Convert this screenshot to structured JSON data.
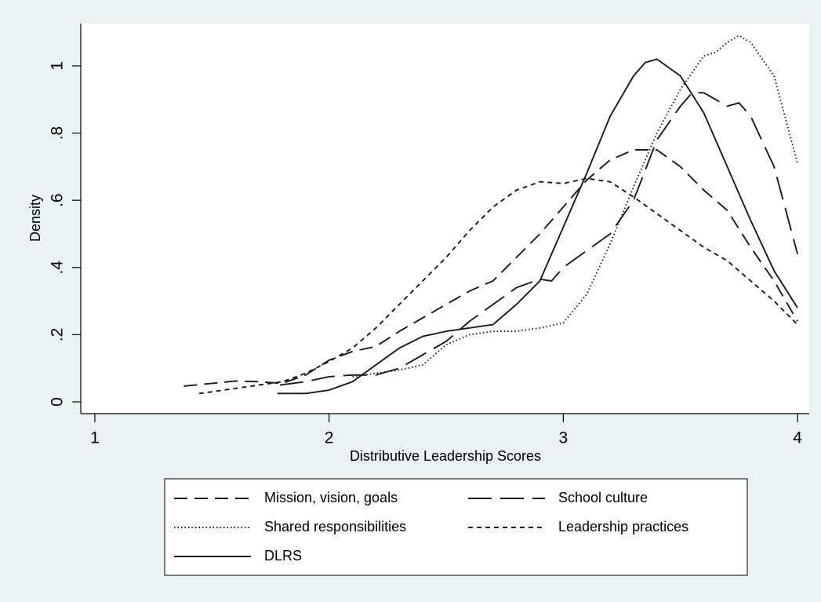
{
  "chart_data": {
    "type": "line",
    "xlabel": "Distributive Leadership Scores",
    "ylabel": "Density",
    "xlim": [
      0.94,
      4.05
    ],
    "xticks": [
      1,
      2,
      3,
      4
    ],
    "ylim": [
      -0.035,
      1.126
    ],
    "yticks": [
      0,
      {
        "value": 0.2,
        "label": ".2"
      },
      {
        "value": 0.4,
        "label": ".4"
      },
      {
        "value": 0.6,
        "label": ".6"
      },
      {
        "value": 0.8,
        "label": ".8"
      },
      1
    ],
    "grid": false,
    "series": [
      {
        "name": "Mission, vision, goals",
        "color": "#1a1a1a",
        "x": [
          1.38,
          1.5,
          1.6,
          1.7,
          1.8,
          1.9,
          2.0,
          2.1,
          2.2,
          2.3,
          2.4,
          2.5,
          2.6,
          2.7,
          2.8,
          2.9,
          3.0,
          3.1,
          3.2,
          3.3,
          3.4,
          3.5,
          3.6,
          3.7,
          3.8,
          3.9,
          4.0
        ],
        "values": [
          0.047,
          0.055,
          0.062,
          0.06,
          0.055,
          0.08,
          0.124,
          0.15,
          0.165,
          0.21,
          0.25,
          0.29,
          0.33,
          0.36,
          0.43,
          0.5,
          0.58,
          0.66,
          0.72,
          0.75,
          0.75,
          0.7,
          0.63,
          0.57,
          0.46,
          0.36,
          0.24
        ]
      },
      {
        "name": "School culture",
        "color": "#1a1a1a",
        "x": [
          1.79,
          1.9,
          2.0,
          2.1,
          2.2,
          2.3,
          2.4,
          2.5,
          2.6,
          2.7,
          2.8,
          2.9,
          2.95,
          3.0,
          3.1,
          3.2,
          3.3,
          3.4,
          3.5,
          3.55,
          3.6,
          3.65,
          3.7,
          3.75,
          3.8,
          3.9,
          4.0
        ],
        "values": [
          0.05,
          0.06,
          0.075,
          0.08,
          0.08,
          0.1,
          0.14,
          0.18,
          0.24,
          0.29,
          0.34,
          0.365,
          0.36,
          0.4,
          0.45,
          0.5,
          0.6,
          0.78,
          0.88,
          0.92,
          0.92,
          0.9,
          0.88,
          0.89,
          0.85,
          0.7,
          0.44
        ]
      },
      {
        "name": "Shared responsibilities",
        "color": "#1a1a1a",
        "x": [
          2.1,
          2.2,
          2.3,
          2.4,
          2.5,
          2.6,
          2.7,
          2.8,
          2.9,
          3.0,
          3.1,
          3.2,
          3.3,
          3.4,
          3.5,
          3.6,
          3.65,
          3.7,
          3.75,
          3.8,
          3.9,
          4.0
        ],
        "values": [
          0.075,
          0.085,
          0.095,
          0.11,
          0.17,
          0.2,
          0.21,
          0.21,
          0.22,
          0.235,
          0.32,
          0.47,
          0.64,
          0.8,
          0.93,
          1.03,
          1.04,
          1.07,
          1.09,
          1.07,
          0.97,
          0.71
        ]
      },
      {
        "name": "Leadership practices",
        "color": "#1a1a1a",
        "x": [
          1.445,
          1.5,
          1.6,
          1.7,
          1.8,
          1.9,
          2.0,
          2.1,
          2.2,
          2.3,
          2.4,
          2.5,
          2.6,
          2.7,
          2.8,
          2.9,
          3.0,
          3.1,
          3.2,
          3.3,
          3.4,
          3.5,
          3.6,
          3.7,
          3.8,
          3.9,
          4.0
        ],
        "values": [
          0.025,
          0.03,
          0.04,
          0.05,
          0.06,
          0.085,
          0.12,
          0.16,
          0.22,
          0.29,
          0.36,
          0.43,
          0.51,
          0.58,
          0.63,
          0.655,
          0.65,
          0.665,
          0.655,
          0.61,
          0.56,
          0.51,
          0.46,
          0.42,
          0.36,
          0.3,
          0.23
        ]
      },
      {
        "name": "DLRS",
        "color": "#1a1a1a",
        "x": [
          1.78,
          1.9,
          2.0,
          2.1,
          2.2,
          2.3,
          2.4,
          2.5,
          2.6,
          2.7,
          2.8,
          2.9,
          3.0,
          3.1,
          3.2,
          3.3,
          3.35,
          3.4,
          3.5,
          3.6,
          3.7,
          3.8,
          3.9,
          4.0
        ],
        "values": [
          0.025,
          0.025,
          0.035,
          0.06,
          0.11,
          0.16,
          0.195,
          0.21,
          0.22,
          0.23,
          0.29,
          0.36,
          0.52,
          0.68,
          0.85,
          0.97,
          1.01,
          1.02,
          0.97,
          0.86,
          0.7,
          0.54,
          0.39,
          0.28
        ]
      }
    ]
  }
}
